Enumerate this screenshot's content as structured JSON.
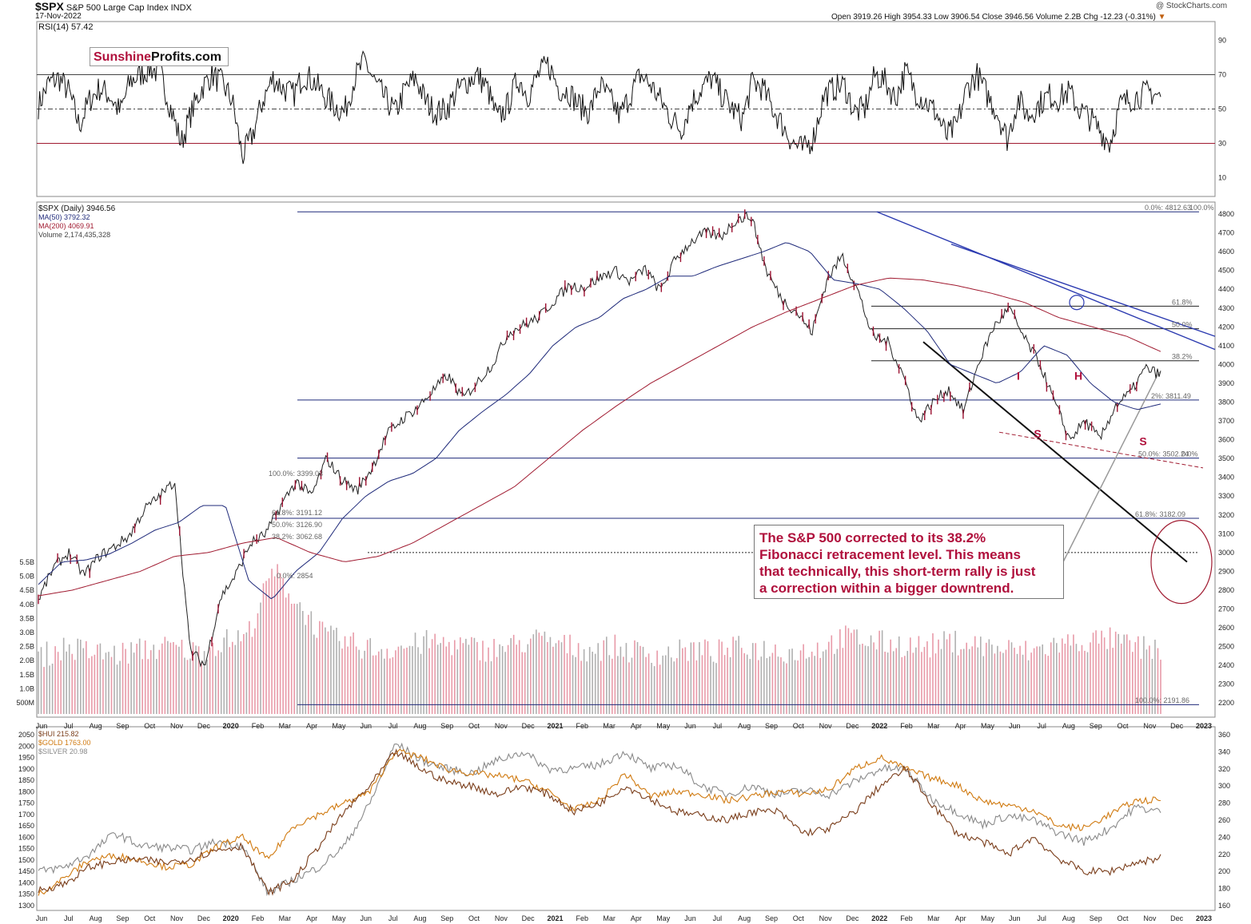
{
  "header": {
    "ticker": "$SPX",
    "name": "S&P 500 Large Cap Index",
    "exchange": "INDX",
    "date": "17-Nov-2022",
    "ohlc": "Open 3919.26  High 3954.33  Low 3906.54  Close 3946.56  Volume 2.2B  Chg -12.23 (-0.31%)",
    "change_arrow": "▼",
    "copyright": "@ StockCharts.com"
  },
  "brand": {
    "part1": "Sunshine",
    "part2": "Profits.com"
  },
  "callout": {
    "lines": [
      "The S&P 500 corrected to its 38.2%",
      "Fibonacci retracement level. This means",
      "that technically, this short-term rally is just",
      "a correction within a bigger downtrend."
    ]
  },
  "colors": {
    "up": "#111111",
    "down": "#9b1030",
    "ma50": "#1f2a7a",
    "ma200": "#a01a30",
    "hui": "#7a3d1a",
    "gold": "#d07a10",
    "silver": "#8a8a8a",
    "accent": "#b0103c"
  },
  "chart_data": [
    {
      "type": "line",
      "title": "RSI(14) 57.42",
      "ylim": [
        0,
        100
      ],
      "yticks": [
        10,
        30,
        50,
        70,
        90
      ],
      "reference_levels": [
        30,
        50,
        70
      ],
      "series": [
        {
          "name": "RSI(14)",
          "values": [
            52,
            65,
            68,
            60,
            40,
            55,
            62,
            58,
            48,
            66,
            70,
            74,
            70,
            50,
            30,
            48,
            62,
            70,
            65,
            55,
            22,
            35,
            55,
            68,
            62,
            58,
            70,
            66,
            58,
            52,
            48,
            68,
            78,
            65,
            56,
            48,
            62,
            68,
            54,
            48,
            50,
            60,
            66,
            70,
            62,
            44,
            52,
            68,
            58,
            70,
            76,
            62,
            60,
            52,
            48,
            64,
            56,
            46,
            58,
            70,
            64,
            55,
            45,
            38,
            54,
            62,
            68,
            58,
            50,
            44,
            66,
            62,
            50,
            40,
            30,
            26,
            34,
            58,
            62,
            64,
            48,
            50,
            70,
            66,
            56,
            72,
            60,
            54,
            48,
            34,
            40,
            62,
            70,
            58,
            48,
            32,
            56,
            46,
            52,
            58,
            56,
            60,
            50,
            45,
            38,
            30,
            52,
            56,
            58,
            60,
            57
          ]
        }
      ]
    },
    {
      "type": "line",
      "title": "$SPX (Daily) 3946.56",
      "ylim": [
        2150,
        4830
      ],
      "yticks": [
        2200,
        2300,
        2400,
        2500,
        2600,
        2700,
        2800,
        2900,
        3000,
        3100,
        3200,
        3300,
        3400,
        3500,
        3600,
        3700,
        3800,
        3900,
        4000,
        4100,
        4200,
        4300,
        4400,
        4500,
        4600,
        4700,
        4800
      ],
      "legend": [
        "$SPX (Daily) 3946.56",
        "MA(50) 3792.32",
        "MA(200) 4069.91",
        "Volume 2,174,435,328"
      ],
      "volume_ticks": [
        "5.5B",
        "5.0B",
        "4.5B",
        "4.0B",
        "3.5B",
        "3.0B",
        "2.5B",
        "2.0B",
        "1.5B",
        "1.0B",
        "500M"
      ],
      "x_labels": [
        "Jun",
        "Jul",
        "Aug",
        "Sep",
        "Oct",
        "Nov",
        "Dec",
        "2020",
        "Feb",
        "Mar",
        "Apr",
        "May",
        "Jun",
        "Jul",
        "Aug",
        "Sep",
        "Oct",
        "Nov",
        "Dec",
        "2021",
        "Feb",
        "Mar",
        "Apr",
        "May",
        "Jun",
        "Jul",
        "Aug",
        "Sep",
        "Oct",
        "Nov",
        "Dec",
        "2022",
        "Feb",
        "Mar",
        "Apr",
        "May",
        "Jun",
        "Jul",
        "Aug",
        "Sep",
        "Oct",
        "Nov",
        "Dec",
        "2023"
      ],
      "series": [
        {
          "name": "$SPX",
          "values": [
            2750,
            2920,
            3000,
            2880,
            2980,
            3030,
            3090,
            3230,
            3300,
            3380,
            2480,
            2400,
            2760,
            2880,
            3050,
            3100,
            3250,
            3380,
            3300,
            3500,
            3390,
            3330,
            3450,
            3630,
            3710,
            3770,
            3860,
            3940,
            3820,
            3910,
            4010,
            4170,
            4210,
            4250,
            4340,
            4420,
            4410,
            4460,
            4500,
            4440,
            4510,
            4390,
            4560,
            4650,
            4700,
            4680,
            4770,
            4790,
            4500,
            4350,
            4280,
            4170,
            4450,
            4580,
            4400,
            4150,
            4120,
            3950,
            3700,
            3800,
            3870,
            3750,
            4010,
            4200,
            4300,
            4140,
            4010,
            3800,
            3600,
            3700,
            3600,
            3780,
            3850,
            3980,
            3946
          ]
        },
        {
          "name": "MA(50)",
          "values": [
            2830,
            2950,
            2960,
            2990,
            3050,
            3120,
            3160,
            3250,
            3250,
            2850,
            2750,
            2900,
            3000,
            3180,
            3300,
            3380,
            3420,
            3500,
            3650,
            3750,
            3840,
            3950,
            4100,
            4200,
            4250,
            4350,
            4400,
            4470,
            4470,
            4520,
            4560,
            4600,
            4650,
            4600,
            4450,
            4430,
            4400,
            4300,
            4180,
            4000,
            3950,
            3900,
            3960,
            4100,
            4050,
            3900,
            3800,
            3760,
            3790
          ]
        },
        {
          "name": "MA(200)",
          "values": [
            2770,
            2800,
            2850,
            2900,
            2980,
            3000,
            3050,
            3080,
            3000,
            2950,
            2980,
            3050,
            3150,
            3250,
            3350,
            3500,
            3650,
            3780,
            3900,
            4000,
            4100,
            4200,
            4280,
            4350,
            4420,
            4460,
            4450,
            4420,
            4380,
            4330,
            4250,
            4200,
            4150,
            4069
          ]
        },
        {
          "name": "Volume (B)",
          "values": [
            2.2,
            2.6,
            2.4,
            2.3,
            2.5,
            2.6,
            2.4,
            2.8,
            3.0,
            5.6,
            4.2,
            3.0,
            2.7,
            2.5,
            2.6,
            2.8,
            2.7,
            2.5,
            2.6,
            2.9,
            2.7,
            2.5,
            2.6,
            2.4,
            2.3,
            2.5,
            2.4,
            2.6,
            2.5,
            2.4,
            2.6,
            3.0,
            2.8,
            2.7,
            2.6,
            2.8,
            2.7,
            2.5,
            2.4,
            2.7,
            2.8,
            2.9,
            2.6,
            2.5
          ]
        }
      ],
      "fib_labels": [
        {
          "label": "0.0%: 4812.63",
          "value": 4812.63
        },
        {
          "label": "100.0%",
          "value": 4812.63
        },
        {
          "label": "61.8%",
          "value": 4310
        },
        {
          "label": "50.0%",
          "value": 4190
        },
        {
          "label": "38.2%",
          "value": 4020
        },
        {
          "label": "2%: 3811.49",
          "value": 3811.49
        },
        {
          "label": "50.0%: 3502.24",
          "value": 3502.24
        },
        {
          "label": "0.0%",
          "value": 3502.24
        },
        {
          "label": "61.8%: 3182.09",
          "value": 3182.09
        },
        {
          "label": "100.0%: 2191.86",
          "value": 2191.86
        },
        {
          "label": "100.0%: 3399.03",
          "value": 3399.03
        },
        {
          "label": "61.8%: 3191.12",
          "value": 3191.12
        },
        {
          "label": "50.0%: 3126.90",
          "value": 3126.9
        },
        {
          "label": "38.2%: 3062.68",
          "value": 3062.68
        },
        {
          "label": "0.0%: 2854",
          "value": 2854
        }
      ],
      "pattern_labels": [
        "S",
        "H",
        "S",
        "I"
      ]
    },
    {
      "type": "line",
      "title": "$HUI / $GOLD / $SILVER",
      "legend": [
        "$HUI 215.82",
        "$GOLD 1763.00",
        "$SILVER 20.98"
      ],
      "left_ylim": [
        1300,
        2050
      ],
      "left_yticks": [
        1300,
        1350,
        1400,
        1450,
        1500,
        1550,
        1600,
        1650,
        1700,
        1750,
        1800,
        1850,
        1900,
        1950,
        2000,
        2050
      ],
      "right_ylim": [
        160,
        360
      ],
      "right_yticks": [
        160,
        180,
        200,
        220,
        240,
        260,
        280,
        300,
        320,
        340,
        360
      ],
      "x_labels": [
        "Jun",
        "Jul",
        "Aug",
        "Sep",
        "Oct",
        "Nov",
        "Dec",
        "2020",
        "Feb",
        "Mar",
        "Apr",
        "May",
        "Jun",
        "Jul",
        "Aug",
        "Sep",
        "Oct",
        "Nov",
        "Dec",
        "2021",
        "Feb",
        "Mar",
        "Apr",
        "May",
        "Jun",
        "Jul",
        "Aug",
        "Sep",
        "Oct",
        "Nov",
        "Dec",
        "2022",
        "Feb",
        "Mar",
        "Apr",
        "May",
        "Jun",
        "Jul",
        "Aug",
        "Sep",
        "Oct",
        "Nov",
        "Dec",
        "2023"
      ],
      "series": [
        {
          "name": "$HUI",
          "values": [
            178,
            185,
            205,
            212,
            214,
            210,
            215,
            225,
            230,
            175,
            190,
            230,
            270,
            300,
            340,
            320,
            305,
            300,
            290,
            300,
            290,
            270,
            280,
            300,
            285,
            270,
            265,
            260,
            270,
            270,
            245,
            250,
            270,
            300,
            320,
            280,
            245,
            235,
            220,
            240,
            215,
            200,
            200,
            210,
            216
          ]
        },
        {
          "name": "$GOLD",
          "values": [
            1350,
            1420,
            1500,
            1520,
            1500,
            1470,
            1480,
            1560,
            1600,
            1500,
            1650,
            1700,
            1750,
            1800,
            1980,
            1950,
            1900,
            1880,
            1870,
            1850,
            1800,
            1720,
            1760,
            1880,
            1780,
            1800,
            1790,
            1760,
            1780,
            1800,
            1790,
            1810,
            1900,
            1950,
            1900,
            1860,
            1830,
            1760,
            1740,
            1720,
            1650,
            1640,
            1700,
            1760,
            1763
          ]
        },
        {
          "name": "$SILVER",
          "values": [
            200,
            205,
            220,
            245,
            230,
            228,
            225,
            235,
            230,
            175,
            190,
            205,
            230,
            280,
            350,
            330,
            320,
            315,
            330,
            340,
            320,
            320,
            325,
            340,
            320,
            325,
            300,
            290,
            300,
            290,
            295,
            290,
            305,
            320,
            320,
            285,
            270,
            255,
            265,
            260,
            245,
            235,
            250,
            275,
            270
          ]
        }
      ]
    }
  ]
}
